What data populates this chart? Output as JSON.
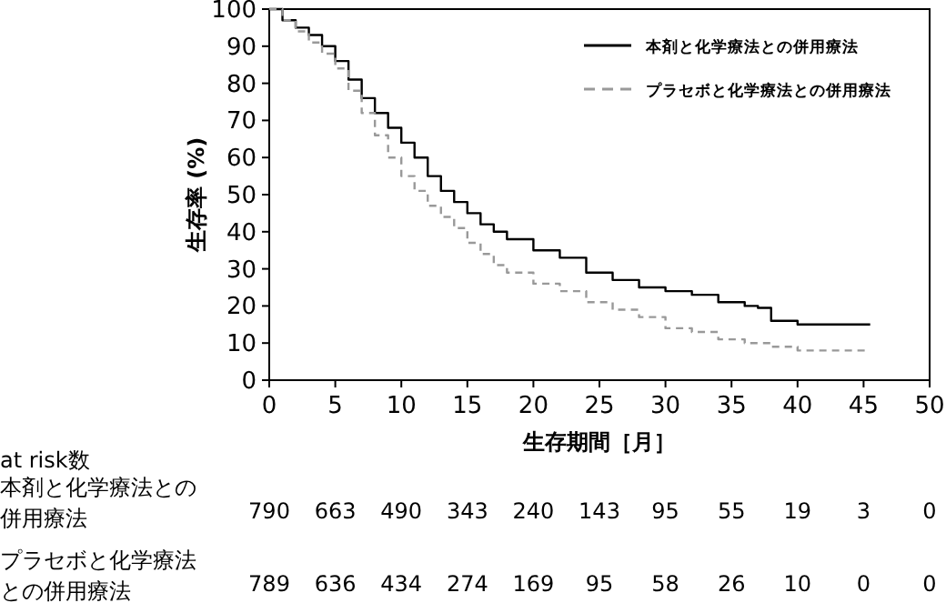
{
  "chart_data": {
    "type": "step",
    "xlabel": "生存期間［月］",
    "ylabel": "生存率 (%)",
    "xlim": [
      0,
      50
    ],
    "xticks": [
      0,
      5,
      10,
      15,
      20,
      25,
      30,
      35,
      40,
      45,
      50
    ],
    "ylim": [
      0,
      100
    ],
    "yticks": [
      0,
      10,
      20,
      30,
      40,
      50,
      60,
      70,
      80,
      90,
      100
    ],
    "legend": "top right",
    "grid": false,
    "series": [
      {
        "name": "本剤と化学療法との併用療法",
        "color": "#000000",
        "line_style": "solid",
        "x": [
          0,
          1,
          2,
          3,
          4,
          5,
          6,
          7,
          8,
          9,
          10,
          11,
          12,
          13,
          14,
          15,
          16,
          17,
          18,
          20,
          22,
          24,
          26,
          28,
          30,
          32,
          34,
          36,
          37,
          38,
          40,
          45.5
        ],
        "values": [
          100,
          97,
          95,
          93,
          90,
          86,
          81,
          76,
          72,
          68,
          64,
          60,
          55,
          51,
          48,
          45,
          42,
          40,
          38,
          35,
          33,
          29,
          27,
          25,
          24,
          23,
          21,
          20,
          19.5,
          16,
          15,
          15
        ]
      },
      {
        "name": "プラセボと化学療法との併用療法",
        "color": "#999999",
        "line_style": "dashed",
        "x": [
          0,
          1,
          2,
          3,
          4,
          5,
          6,
          7,
          8,
          9,
          10,
          11,
          12,
          13,
          14,
          15,
          16,
          17,
          18,
          20,
          22,
          24,
          26,
          28,
          30,
          32,
          34,
          36,
          38,
          40,
          45.3
        ],
        "values": [
          100,
          97,
          94,
          91,
          88,
          84,
          78,
          72,
          66,
          60,
          55,
          51,
          47,
          44,
          41,
          37,
          34,
          31,
          29,
          26,
          24,
          21,
          19,
          17,
          14,
          13,
          11,
          10,
          9,
          8,
          8
        ]
      }
    ],
    "annotations": [
      "at risk数",
      "本剤と化学療法との併用療法",
      "790",
      "663",
      "490",
      "343",
      "240",
      "143",
      "95",
      "55",
      "19",
      "3",
      "0",
      "プラセボと化学療法との併用療法",
      "789",
      "636",
      "434",
      "274",
      "169",
      "95",
      "58",
      "26",
      "10",
      "0",
      "0"
    ]
  }
}
